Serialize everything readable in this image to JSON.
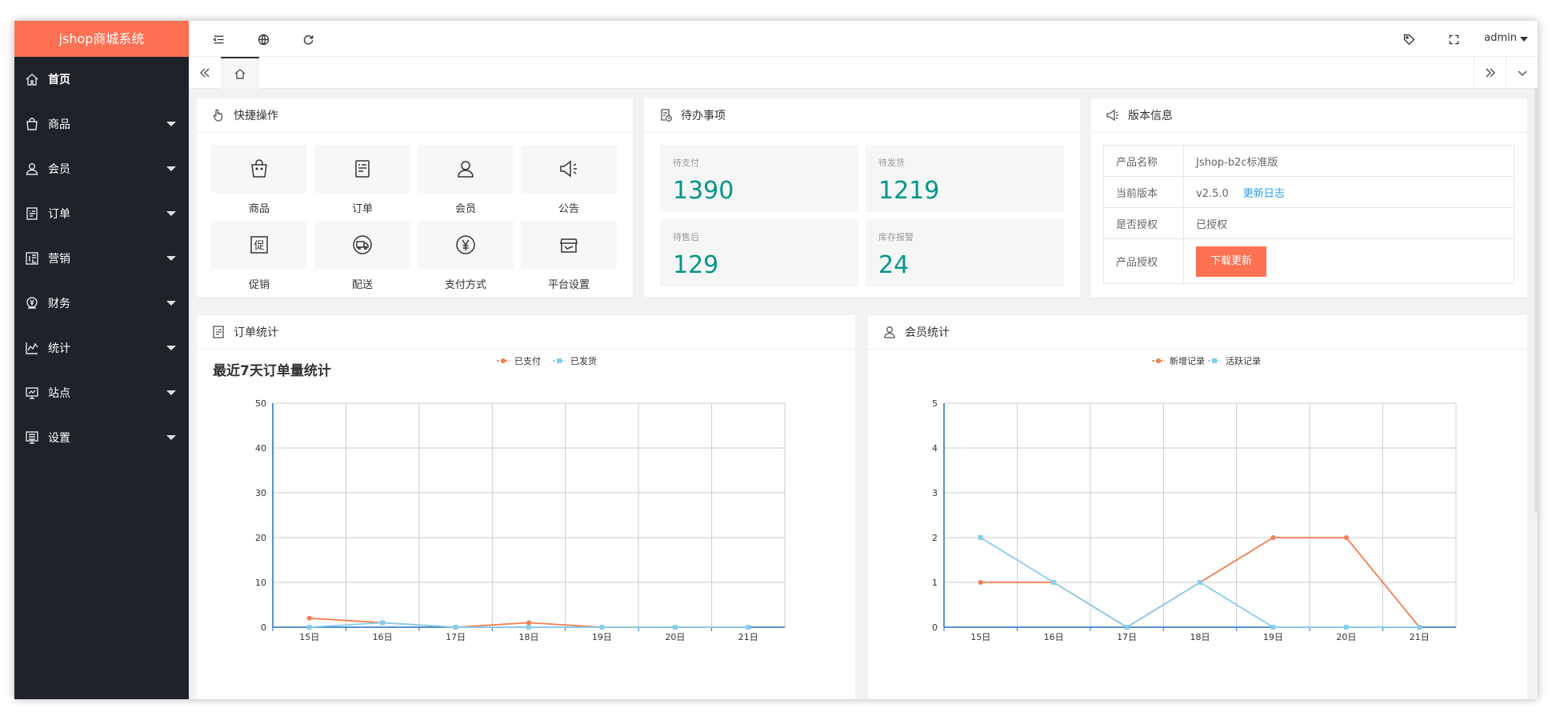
{
  "app": {
    "title": "jshop商城系统"
  },
  "sidebar": {
    "items": [
      {
        "label": "首页",
        "icon": "home-icon",
        "active": true
      },
      {
        "label": "商品",
        "icon": "bag-icon"
      },
      {
        "label": "会员",
        "icon": "user-icon"
      },
      {
        "label": "订单",
        "icon": "order-icon"
      },
      {
        "label": "营销",
        "icon": "promo-icon"
      },
      {
        "label": "财务",
        "icon": "finance-icon"
      },
      {
        "label": "统计",
        "icon": "stats-icon"
      },
      {
        "label": "站点",
        "icon": "site-icon"
      },
      {
        "label": "设置",
        "icon": "settings-icon"
      }
    ]
  },
  "topbar": {
    "user": "admin"
  },
  "quick": {
    "title": "快捷操作",
    "items": [
      "商品",
      "订单",
      "会员",
      "公告",
      "促销",
      "配送",
      "支付方式",
      "平台设置"
    ]
  },
  "todo": {
    "title": "待办事项",
    "items": [
      {
        "label": "待支付",
        "value": "1390"
      },
      {
        "label": "待发货",
        "value": "1219"
      },
      {
        "label": "待售后",
        "value": "129"
      },
      {
        "label": "库存报警",
        "value": "24"
      }
    ]
  },
  "version": {
    "title": "版本信息",
    "rows": {
      "name_k": "产品名称",
      "name_v": "Jshop-b2c标准版",
      "ver_k": "当前版本",
      "ver_v": "v2.5.0",
      "ver_link": "更新日志",
      "auth_k": "是否授权",
      "auth_v": "已授权",
      "lic_k": "产品授权",
      "lic_btn": "下载更新"
    }
  },
  "order_stats": {
    "title": "订单统计",
    "chart_title": "最近7天订单量统计"
  },
  "member_stats": {
    "title": "会员统计"
  },
  "colors": {
    "accent": "#ff7153",
    "teal": "#009688",
    "sidebar": "#20222a",
    "series_orange": "#f47c4f",
    "series_blue": "#87ceeb"
  },
  "chart_data": [
    {
      "type": "line",
      "title": "最近7天订单量统计",
      "categories": [
        "15日",
        "16日",
        "17日",
        "18日",
        "19日",
        "20日",
        "21日"
      ],
      "ylim": [
        0,
        50
      ],
      "yticks": [
        0,
        10,
        20,
        30,
        40,
        50
      ],
      "grid": true,
      "legend": "top",
      "series": [
        {
          "name": "已支付",
          "values": [
            2,
            1,
            0,
            1,
            0,
            0,
            0
          ],
          "color": "#f47c4f"
        },
        {
          "name": "已发货",
          "values": [
            0,
            1,
            0,
            0,
            0,
            0,
            0
          ],
          "color": "#87ceeb"
        }
      ]
    },
    {
      "type": "line",
      "categories": [
        "15日",
        "16日",
        "17日",
        "18日",
        "19日",
        "20日",
        "21日"
      ],
      "ylim": [
        0,
        5
      ],
      "yticks": [
        0,
        1,
        2,
        3,
        4,
        5
      ],
      "grid": true,
      "legend": "top",
      "series": [
        {
          "name": "新增记录",
          "values": [
            1,
            1,
            0,
            1,
            2,
            2,
            0
          ],
          "color": "#f47c4f"
        },
        {
          "name": "活跃记录",
          "values": [
            2,
            1,
            0,
            1,
            0,
            0,
            0
          ],
          "color": "#87ceeb"
        }
      ]
    }
  ]
}
